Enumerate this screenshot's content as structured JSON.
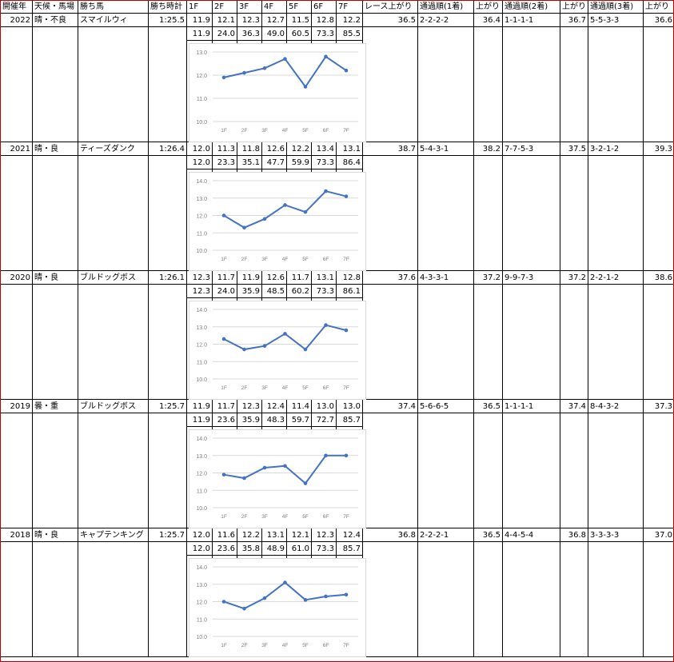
{
  "headers": [
    "開催年",
    "天候・馬場",
    "勝ち馬",
    "勝ち時計",
    "1F",
    "2F",
    "3F",
    "4F",
    "5F",
    "6F",
    "7F",
    "レース上がり",
    "通過順(1着)",
    "上がり",
    "通過順(2着)",
    "上がり",
    "通過順(3着)",
    "上がり"
  ],
  "rows": [
    {
      "year": "2022",
      "weather": "晴・不良",
      "winner": "スマイルウィ",
      "time": "1:25.5",
      "splits": [
        "11.9",
        "12.1",
        "12.3",
        "12.7",
        "11.5",
        "12.8",
        "12.2"
      ],
      "cum": [
        "11.9",
        "24.0",
        "36.3",
        "49.0",
        "60.5",
        "73.3",
        "85.5"
      ],
      "race_last": "36.5",
      "pass1": "2-2-2-2",
      "last1": "36.4",
      "pass2": "1-1-1-1",
      "last2": "36.7",
      "pass3": "5-5-3-3",
      "last3": "36.6"
    },
    {
      "year": "2021",
      "weather": "晴・良",
      "winner": "ティーズダンク",
      "time": "1:26.4",
      "splits": [
        "12.0",
        "11.3",
        "11.8",
        "12.6",
        "12.2",
        "13.4",
        "13.1"
      ],
      "cum": [
        "12.0",
        "23.3",
        "35.1",
        "47.7",
        "59.9",
        "73.3",
        "86.4"
      ],
      "race_last": "38.7",
      "pass1": "5-4-3-1",
      "last1": "38.2",
      "pass2": "7-7-5-3",
      "last2": "37.5",
      "pass3": "3-2-1-2",
      "last3": "39.3"
    },
    {
      "year": "2020",
      "weather": "晴・良",
      "winner": "ブルドッグボス",
      "time": "1:26.1",
      "splits": [
        "12.3",
        "11.7",
        "11.9",
        "12.6",
        "11.7",
        "13.1",
        "12.8"
      ],
      "cum": [
        "12.3",
        "24.0",
        "35.9",
        "48.5",
        "60.2",
        "73.3",
        "86.1"
      ],
      "race_last": "37.6",
      "pass1": "4-3-3-1",
      "last1": "37.2",
      "pass2": "9-9-7-3",
      "last2": "37.2",
      "pass3": "2-2-1-2",
      "last3": "38.6"
    },
    {
      "year": "2019",
      "weather": "曇・重",
      "winner": "ブルドッグボス",
      "time": "1:25.7",
      "splits": [
        "11.9",
        "11.7",
        "12.3",
        "12.4",
        "11.4",
        "13.0",
        "13.0"
      ],
      "cum": [
        "11.9",
        "23.6",
        "35.9",
        "48.3",
        "59.7",
        "72.7",
        "85.7"
      ],
      "race_last": "37.4",
      "pass1": "5-6-6-5",
      "last1": "36.5",
      "pass2": "1-1-1-1",
      "last2": "37.4",
      "pass3": "8-4-3-2",
      "last3": "37.3"
    },
    {
      "year": "2018",
      "weather": "晴・良",
      "winner": "キャプテンキング",
      "time": "1:25.7",
      "splits": [
        "12.0",
        "11.6",
        "12.2",
        "13.1",
        "12.1",
        "12.3",
        "12.4"
      ],
      "cum": [
        "12.0",
        "23.6",
        "35.8",
        "48.9",
        "61.0",
        "73.3",
        "85.7"
      ],
      "race_last": "36.8",
      "pass1": "2-2-2-1",
      "last1": "36.5",
      "pass2": "4-4-5-4",
      "last2": "36.8",
      "pass3": "3-3-3-3",
      "last3": "37.0"
    }
  ],
  "chart_data": [
    {
      "type": "line",
      "categories": [
        "1F",
        "2F",
        "3F",
        "4F",
        "5F",
        "6F",
        "7F"
      ],
      "values": [
        11.9,
        12.1,
        12.3,
        12.7,
        11.5,
        12.8,
        12.2
      ],
      "ylim": [
        10,
        13
      ],
      "yticks": [
        "13.0",
        "12.0",
        "11.0",
        "10.0"
      ],
      "grid": true,
      "color": "#4472c4"
    },
    {
      "type": "line",
      "categories": [
        "1F",
        "2F",
        "3F",
        "4F",
        "5F",
        "6F",
        "7F"
      ],
      "values": [
        12.0,
        11.3,
        11.8,
        12.6,
        12.2,
        13.4,
        13.1
      ],
      "ylim": [
        10,
        14
      ],
      "yticks": [
        "14.0",
        "13.0",
        "12.0",
        "11.0",
        "10.0"
      ],
      "grid": true,
      "color": "#4472c4"
    },
    {
      "type": "line",
      "categories": [
        "1F",
        "2F",
        "3F",
        "4F",
        "5F",
        "6F",
        "7F"
      ],
      "values": [
        12.3,
        11.7,
        11.9,
        12.6,
        11.7,
        13.1,
        12.8
      ],
      "ylim": [
        10,
        14
      ],
      "yticks": [
        "14.0",
        "13.0",
        "12.0",
        "11.0",
        "10.0"
      ],
      "grid": true,
      "color": "#4472c4"
    },
    {
      "type": "line",
      "categories": [
        "1F",
        "2F",
        "3F",
        "4F",
        "5F",
        "6F",
        "7F"
      ],
      "values": [
        11.9,
        11.7,
        12.3,
        12.4,
        11.4,
        13.0,
        13.0
      ],
      "ylim": [
        10,
        14
      ],
      "yticks": [
        "14.0",
        "13.0",
        "12.0",
        "11.0",
        "10.0"
      ],
      "grid": true,
      "color": "#4472c4"
    },
    {
      "type": "line",
      "categories": [
        "1F",
        "2F",
        "3F",
        "4F",
        "5F",
        "6F",
        "7F"
      ],
      "values": [
        12.0,
        11.6,
        12.2,
        13.1,
        12.1,
        12.3,
        12.4
      ],
      "ylim": [
        10,
        14
      ],
      "yticks": [
        "14.0",
        "13.0",
        "12.0",
        "11.0",
        "10.0"
      ],
      "grid": true,
      "color": "#4472c4"
    }
  ]
}
